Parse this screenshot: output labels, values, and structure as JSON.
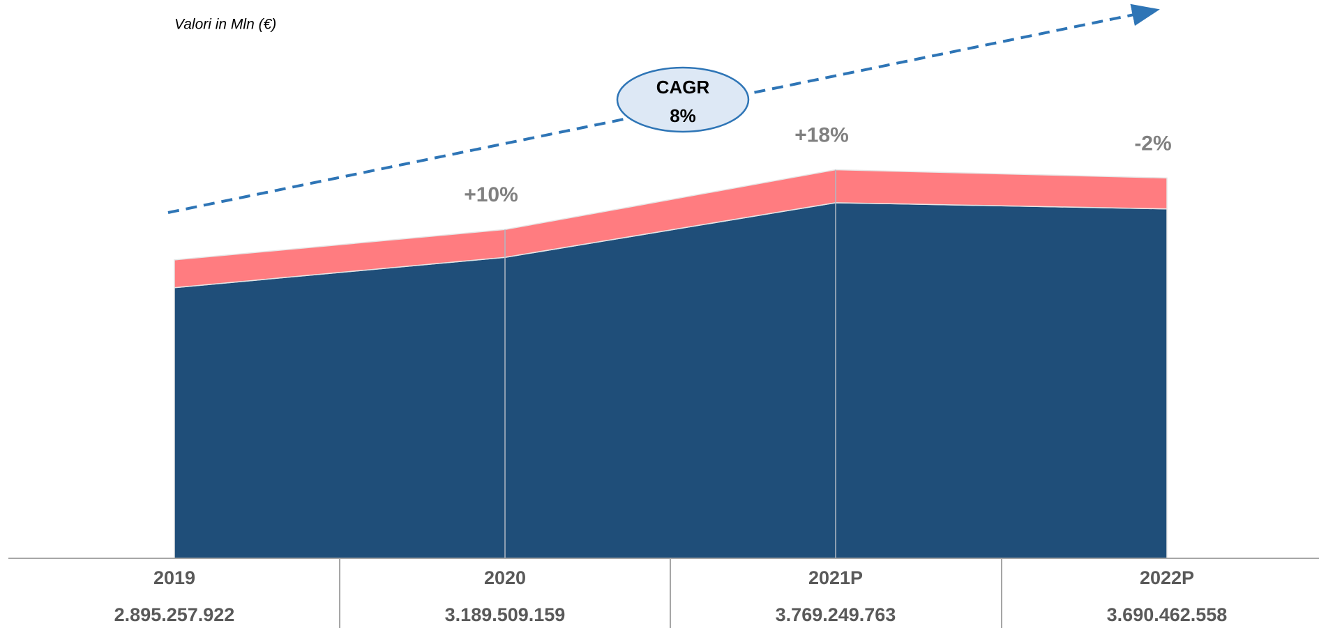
{
  "chart_data": {
    "type": "stacked_area",
    "subtitle": "Valori in Mln (€)",
    "categories": [
      "2019",
      "2020",
      "2021P",
      "2022P"
    ],
    "series": [
      {
        "color": "#1f4e79",
        "values": [
          2626000000,
          2920000000,
          3450000000,
          3390000000
        ]
      },
      {
        "color": "#ff7c80",
        "values": [
          269000000,
          270000000,
          320000000,
          300000000
        ]
      }
    ],
    "totals": {
      "values": [
        2895257922,
        3189509159,
        3769249763,
        3690462558
      ],
      "value_labels": [
        "2.895.257.922",
        "3.189.509.159",
        "3.769.249.763",
        "3.690.462.558"
      ]
    },
    "growth": {
      "values": [
        null,
        10,
        18,
        -2
      ],
      "value_labels": [
        null,
        "+10%",
        "+18%",
        "-2%"
      ]
    },
    "cagr": {
      "label": "CAGR",
      "value": 8,
      "value_label": "8%"
    },
    "ylim": [
      0,
      4700000000
    ]
  }
}
